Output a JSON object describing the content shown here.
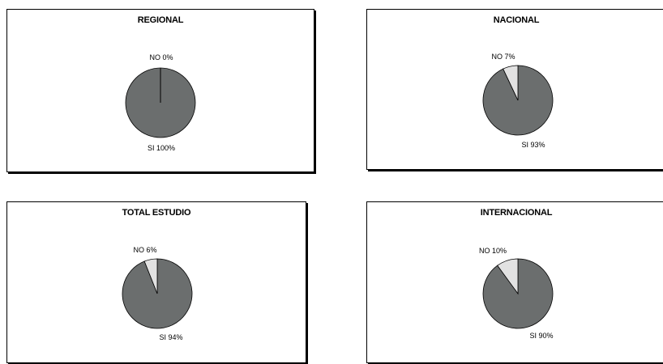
{
  "chart_data": [
    {
      "type": "pie",
      "title": "REGIONAL",
      "slices": [
        {
          "label": "NO",
          "value": 0,
          "text": "0%",
          "color": "#e2e2e2"
        },
        {
          "label": "SI",
          "value": 100,
          "text": "100%",
          "color": "#6b6e6e"
        }
      ]
    },
    {
      "type": "pie",
      "title": "NACIONAL",
      "slices": [
        {
          "label": "NO",
          "value": 7,
          "text": "7%",
          "color": "#e2e2e2"
        },
        {
          "label": "SI",
          "value": 93,
          "text": "93%",
          "color": "#6b6e6e"
        }
      ]
    },
    {
      "type": "pie",
      "title": "TOTAL ESTUDIO",
      "slices": [
        {
          "label": "NO",
          "value": 6,
          "text": "6%",
          "color": "#e2e2e2"
        },
        {
          "label": "SI",
          "value": 94,
          "text": "94%",
          "color": "#6b6e6e"
        }
      ]
    },
    {
      "type": "pie",
      "title": "INTERNACIONAL",
      "slices": [
        {
          "label": "NO",
          "value": 10,
          "text": "10%",
          "color": "#e2e2e2"
        },
        {
          "label": "SI",
          "value": 90,
          "text": "90%",
          "color": "#6b6e6e"
        }
      ]
    }
  ]
}
